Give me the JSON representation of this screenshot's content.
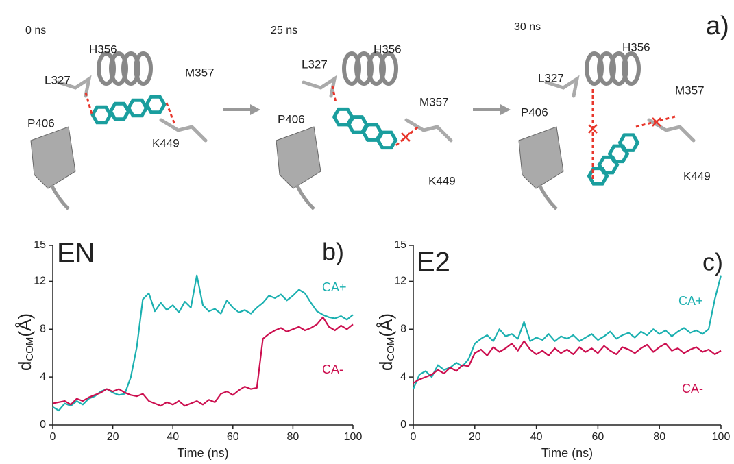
{
  "panel_a": {
    "label": "a)",
    "snapshots": [
      {
        "time": "0 ns",
        "residues": [
          "H356",
          "M357",
          "L327",
          "P406",
          "K449"
        ]
      },
      {
        "time": "25 ns",
        "residues": [
          "L327",
          "H356",
          "M357",
          "P406",
          "K449"
        ]
      },
      {
        "time": "30 ns",
        "residues": [
          "H356",
          "L327",
          "M357",
          "P406",
          "K449"
        ]
      }
    ]
  },
  "chart_data": [
    {
      "type": "line",
      "title": "EN",
      "panel_label": "b)",
      "xlabel": "Time (ns)",
      "ylabel": [
        "d",
        "COM",
        "(Å)"
      ],
      "xlim": [
        0,
        100
      ],
      "ylim": [
        0,
        15
      ],
      "xticks": [
        0,
        20,
        40,
        60,
        80,
        100
      ],
      "yticks": [
        0,
        4,
        8,
        12,
        15
      ],
      "x": [
        0,
        2,
        4,
        6,
        8,
        10,
        12,
        14,
        16,
        18,
        20,
        22,
        24,
        26,
        28,
        30,
        32,
        34,
        36,
        38,
        40,
        42,
        44,
        46,
        48,
        50,
        52,
        54,
        56,
        58,
        60,
        62,
        64,
        66,
        68,
        70,
        72,
        74,
        76,
        78,
        80,
        82,
        84,
        86,
        88,
        90,
        92,
        94,
        96,
        98,
        100
      ],
      "series": [
        {
          "name": "CA+",
          "color": "#1bb0b0",
          "values": [
            1.5,
            1.2,
            1.8,
            1.6,
            2.0,
            1.7,
            2.2,
            2.4,
            2.8,
            3.0,
            2.7,
            2.5,
            2.6,
            4.0,
            6.5,
            10.5,
            11.0,
            9.5,
            10.2,
            9.6,
            10.0,
            9.4,
            10.3,
            9.8,
            12.5,
            10.0,
            9.5,
            9.7,
            9.3,
            10.4,
            9.8,
            9.4,
            9.6,
            9.3,
            9.8,
            10.2,
            10.8,
            10.6,
            10.9,
            10.4,
            10.8,
            11.3,
            11.0,
            10.2,
            9.5,
            9.2,
            9.0,
            8.9,
            9.1,
            8.8,
            9.2
          ]
        },
        {
          "name": "CA-",
          "color": "#cc0f4f",
          "values": [
            1.8,
            1.9,
            2.0,
            1.7,
            2.2,
            2.0,
            2.3,
            2.5,
            2.7,
            3.0,
            2.8,
            3.0,
            2.7,
            2.5,
            2.4,
            2.6,
            2.0,
            1.8,
            1.6,
            1.9,
            1.7,
            2.0,
            1.6,
            1.8,
            2.0,
            1.7,
            2.1,
            1.9,
            2.6,
            2.8,
            2.5,
            2.9,
            3.2,
            3.0,
            3.1,
            7.2,
            7.6,
            7.9,
            8.1,
            7.8,
            8.0,
            8.2,
            7.9,
            8.1,
            8.4,
            9.0,
            8.2,
            7.9,
            8.3,
            8.0,
            8.4
          ]
        }
      ]
    },
    {
      "type": "line",
      "title": "E2",
      "panel_label": "c)",
      "xlabel": "Time (ns)",
      "ylabel": [
        "d",
        "COM",
        "(Å)"
      ],
      "xlim": [
        0,
        100
      ],
      "ylim": [
        0,
        15
      ],
      "xticks": [
        0,
        20,
        40,
        60,
        80,
        100
      ],
      "yticks": [
        0,
        4,
        8,
        12,
        15
      ],
      "x": [
        0,
        2,
        4,
        6,
        8,
        10,
        12,
        14,
        16,
        18,
        20,
        22,
        24,
        26,
        28,
        30,
        32,
        34,
        36,
        38,
        40,
        42,
        44,
        46,
        48,
        50,
        52,
        54,
        56,
        58,
        60,
        62,
        64,
        66,
        68,
        70,
        72,
        74,
        76,
        78,
        80,
        82,
        84,
        86,
        88,
        90,
        92,
        94,
        96,
        98,
        100
      ],
      "series": [
        {
          "name": "CA+",
          "color": "#1bb0b0",
          "values": [
            3.0,
            4.2,
            4.5,
            4.0,
            5.0,
            4.6,
            4.8,
            5.2,
            4.9,
            5.5,
            6.8,
            7.2,
            7.5,
            7.0,
            8.0,
            7.4,
            7.6,
            7.2,
            8.6,
            7.0,
            7.3,
            7.1,
            7.6,
            7.0,
            7.4,
            7.2,
            7.5,
            7.0,
            7.3,
            7.6,
            7.1,
            7.4,
            7.8,
            7.2,
            7.5,
            7.7,
            7.3,
            7.8,
            7.5,
            8.0,
            7.6,
            7.9,
            7.4,
            7.8,
            8.1,
            7.7,
            7.9,
            7.6,
            8.0,
            10.5,
            12.5
          ]
        },
        {
          "name": "CA-",
          "color": "#cc0f4f",
          "values": [
            3.5,
            3.8,
            4.0,
            4.2,
            4.6,
            4.3,
            4.8,
            4.5,
            5.0,
            4.9,
            6.0,
            6.3,
            5.8,
            6.5,
            6.1,
            6.4,
            6.8,
            6.2,
            7.0,
            6.3,
            5.9,
            6.2,
            5.8,
            6.4,
            6.0,
            6.3,
            5.9,
            6.5,
            6.1,
            6.4,
            6.0,
            6.6,
            6.2,
            5.9,
            6.5,
            6.3,
            6.0,
            6.4,
            6.7,
            6.1,
            6.5,
            6.8,
            6.2,
            6.4,
            6.0,
            6.3,
            6.5,
            6.1,
            6.3,
            5.9,
            6.2
          ]
        }
      ]
    }
  ]
}
